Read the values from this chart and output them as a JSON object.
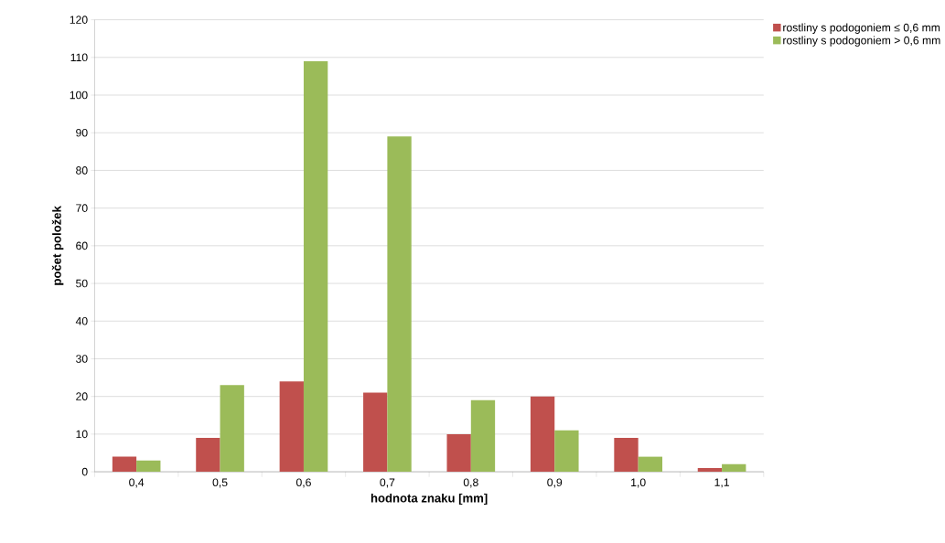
{
  "chart_data": {
    "type": "bar",
    "xlabel": "hodnota znaku [mm]",
    "ylabel": "počet položek",
    "categories": [
      "0,4",
      "0,5",
      "0,6",
      "0,7",
      "0,8",
      "0,9",
      "1,0",
      "1,1"
    ],
    "series": [
      {
        "name": "rostliny s podogoniem  ≤ 0,6 mm",
        "color": "#c0504d",
        "values": [
          4,
          9,
          24,
          21,
          10,
          20,
          9,
          1
        ]
      },
      {
        "name": "rostliny s podogoniem  > 0,6 mm",
        "color": "#9bbb59",
        "values": [
          3,
          23,
          109,
          89,
          19,
          11,
          4,
          2
        ]
      }
    ],
    "ylim": [
      0,
      120
    ],
    "yticks": [
      0,
      10,
      20,
      30,
      40,
      50,
      60,
      70,
      80,
      90,
      100,
      110,
      120
    ],
    "grid": "y",
    "legend": "top right"
  }
}
